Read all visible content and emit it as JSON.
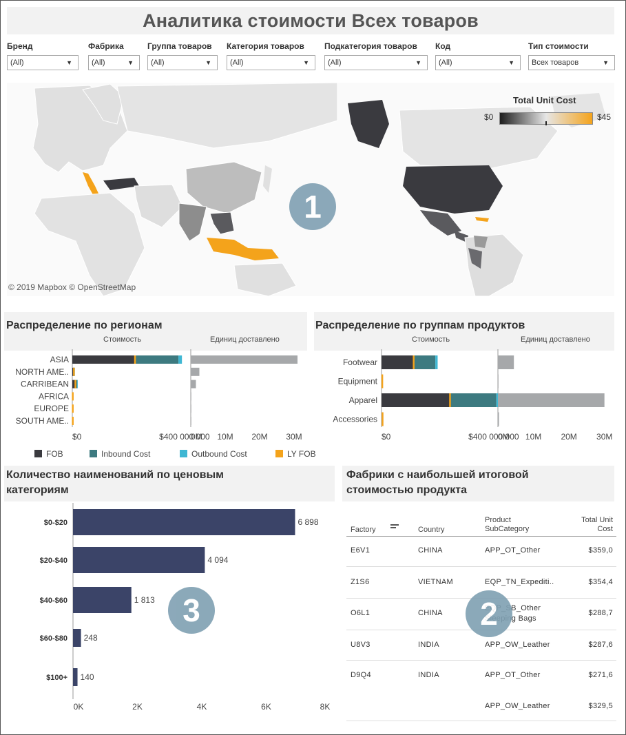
{
  "title": "Аналитика стоимости Всех товаров",
  "filters": [
    {
      "label": "Бренд",
      "value": "(All)"
    },
    {
      "label": "Фабрика",
      "value": "(All)"
    },
    {
      "label": "Группа товаров",
      "value": "(All)"
    },
    {
      "label": "Категория товаров",
      "value": "(All)"
    },
    {
      "label": "Подкатегория товаров",
      "value": "(All)"
    },
    {
      "label": "Код",
      "value": "(All)"
    },
    {
      "label": "Тип стоимости",
      "value": "Всех товаров"
    }
  ],
  "map": {
    "legend_title": "Total Unit Cost",
    "legend_min": "$0",
    "legend_max": "$45",
    "attribution": "© 2019 Mapbox © OpenStreetMap",
    "badge": "1"
  },
  "colors": {
    "fob": "#3a3a3f",
    "inbound": "#3d7a80",
    "outbound": "#3fb7d3",
    "lyfob": "#f4a31b",
    "units": "#a6a8aa",
    "bars": "#3b4468",
    "badge": "#7fa0b2"
  },
  "legend": {
    "fob": "FOB",
    "inbound": "Inbound Cost",
    "outbound": "Outbound Cost",
    "lyfob": "LY FOB"
  },
  "regions": {
    "title": "Распределение по регионам",
    "col1": "Стоимость",
    "col2": "Единиц доставлено",
    "cost_ticks": [
      "$0",
      "$400 000 000"
    ],
    "unit_ticks": [
      "0M",
      "10M",
      "20M",
      "30M"
    ]
  },
  "products": {
    "title": "Распределение по группам продуктов",
    "col1": "Стоимость",
    "col2": "Единиц доставлено",
    "cost_ticks": [
      "$0",
      "$400 000 000"
    ],
    "unit_ticks": [
      "0M",
      "10M",
      "20M",
      "30M"
    ]
  },
  "price": {
    "title_line1": "Количество наименований по ценовым",
    "title_line2": "категориям",
    "badge": "3",
    "x_ticks": [
      "0K",
      "2K",
      "4K",
      "6K",
      "8K"
    ],
    "value_labels": [
      "6 898",
      "4 094",
      "1 813",
      "248",
      "140"
    ]
  },
  "factories": {
    "title_line1": "Фабрики с наибольшей итоговой",
    "title_line2": "стоимостью продукта",
    "badge": "2",
    "headers": {
      "factory": "Factory",
      "country": "Country",
      "sub1": "Product",
      "sub2": "SubCategory",
      "cost1": "Total Unit",
      "cost2": "Cost"
    },
    "rows": [
      {
        "factory": "E6V1",
        "country": "CHINA",
        "sub": "APP_OT_Other",
        "cost": "$359,0"
      },
      {
        "factory": "Z1S6",
        "country": "VIETNAM",
        "sub": "EQP_TN_Expediti..",
        "cost": "$354,4"
      },
      {
        "factory": "O6L1",
        "country": "CHINA",
        "sub": "EQP_SB_Other",
        "sub2": "Sleeping Bags",
        "cost": "$288,7"
      },
      {
        "factory": "U8V3",
        "country": "INDIA",
        "sub": "APP_OW_Leather",
        "cost": "$287,6"
      },
      {
        "factory": "D9Q4",
        "country": "INDIA",
        "sub": "APP_OT_Other",
        "cost": "$271,6"
      },
      {
        "factory": "",
        "country": "",
        "sub": "APP_OW_Leather",
        "cost": "$329,5"
      }
    ]
  },
  "chart_data": [
    {
      "type": "bar",
      "title": "Распределение по регионам",
      "categories": [
        "ASIA",
        "NORTH AME..",
        "CARRIBEAN",
        "AFRICA",
        "EUROPE",
        "SOUTH AME.."
      ],
      "series": [
        {
          "name": "FOB",
          "values": [
            215000000,
            5000000,
            10000000,
            0,
            0,
            0
          ]
        },
        {
          "name": "Inbound Cost",
          "values": [
            150000000,
            3000000,
            7000000,
            0,
            0,
            0
          ]
        },
        {
          "name": "Outbound Cost",
          "values": [
            12000000,
            1000000,
            2000000,
            0,
            0,
            0
          ]
        },
        {
          "name": "LY FOB",
          "values": [
            215000000,
            5000000,
            10000000,
            1000000,
            1000000,
            1000000
          ]
        },
        {
          "name": "Единиц доставлено",
          "values": [
            31000000,
            2500000,
            1500000,
            100000,
            100000,
            100000
          ]
        }
      ],
      "xlim_cost": [
        0,
        450000000
      ],
      "xlim_units": [
        0,
        33000000
      ]
    },
    {
      "type": "bar",
      "title": "Распределение по группам продуктов",
      "categories": [
        "Footwear",
        "Equipment",
        "Apparel",
        "Accessories"
      ],
      "series": [
        {
          "name": "FOB",
          "values": [
            110000000,
            0,
            235000000,
            0
          ]
        },
        {
          "name": "Inbound Cost",
          "values": [
            75000000,
            0,
            160000000,
            0
          ]
        },
        {
          "name": "Outbound Cost",
          "values": [
            8000000,
            0,
            16000000,
            0
          ]
        },
        {
          "name": "LY FOB",
          "values": [
            110000000,
            2000000,
            235000000,
            3000000
          ]
        },
        {
          "name": "Единиц доставлено",
          "values": [
            4500000,
            0,
            30000000,
            300000
          ]
        }
      ],
      "xlim_cost": [
        0,
        450000000
      ],
      "xlim_units": [
        0,
        32000000
      ]
    },
    {
      "type": "bar",
      "title": "Количество наименований по ценовым категориям",
      "categories": [
        "$0-$20",
        "$20-$40",
        "$40-$60",
        "$60-$80",
        "$100+"
      ],
      "values": [
        6898,
        4094,
        1813,
        248,
        140
      ],
      "xlim": [
        0,
        8000
      ]
    }
  ]
}
